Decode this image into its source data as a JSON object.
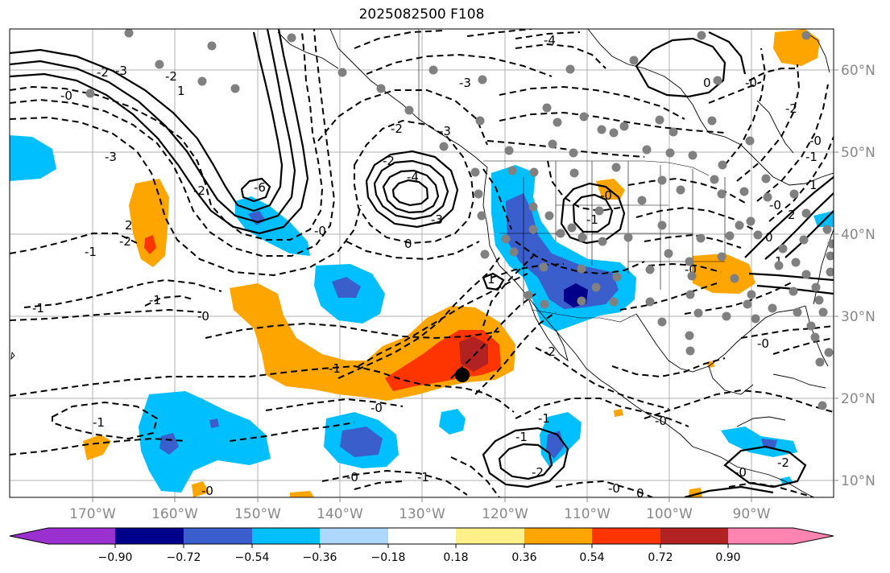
{
  "title": "2025082500 F108",
  "map": {
    "lon_ticks": [
      "170°W",
      "160°W",
      "150°W",
      "140°W",
      "130°W",
      "120°W",
      "110°W",
      "100°W",
      "90°W"
    ],
    "lat_ticks": [
      "60°N",
      "50°N",
      "40°N",
      "30°N",
      "20°N",
      "10°N"
    ],
    "contour_labels": [
      "-2",
      "-3",
      "-0",
      "-2",
      "-3",
      "-2",
      "-1",
      "-2",
      "-1",
      "-1",
      "-1",
      "-0",
      "-0",
      "-1",
      "-0",
      "-0",
      "-1",
      "-2",
      "-0",
      "-1",
      "-4",
      "-3",
      "-2",
      "-2",
      "-3",
      "0",
      "-6",
      "-4",
      "-3",
      "0",
      "-1",
      "-0",
      "-0",
      "1",
      "-2",
      "-2",
      "-0",
      "-1",
      "0",
      "-0",
      "-0",
      "-1",
      "-2",
      "-0",
      "-0",
      "-0",
      "1",
      "0",
      "2",
      "1",
      "-0",
      "0",
      "2",
      "1"
    ],
    "colors": {
      "purple": "#9b30d0",
      "navy": "#00008b",
      "blue": "#3a5fcd",
      "sky": "#00bfff",
      "lightsky": "#add8fb",
      "yellow": "#fff08a",
      "orange": "#ffa500",
      "redorange": "#ff3500",
      "darkred": "#b22222",
      "pink": "#ff85b0",
      "dot": "#808080",
      "grid": "#b0b0b0"
    }
  },
  "colorbar": {
    "labels": [
      "−0.90",
      "−0.72",
      "−0.54",
      "−0.36",
      "−0.18",
      "0.18",
      "0.36",
      "0.54",
      "0.72",
      "0.90"
    ]
  }
}
